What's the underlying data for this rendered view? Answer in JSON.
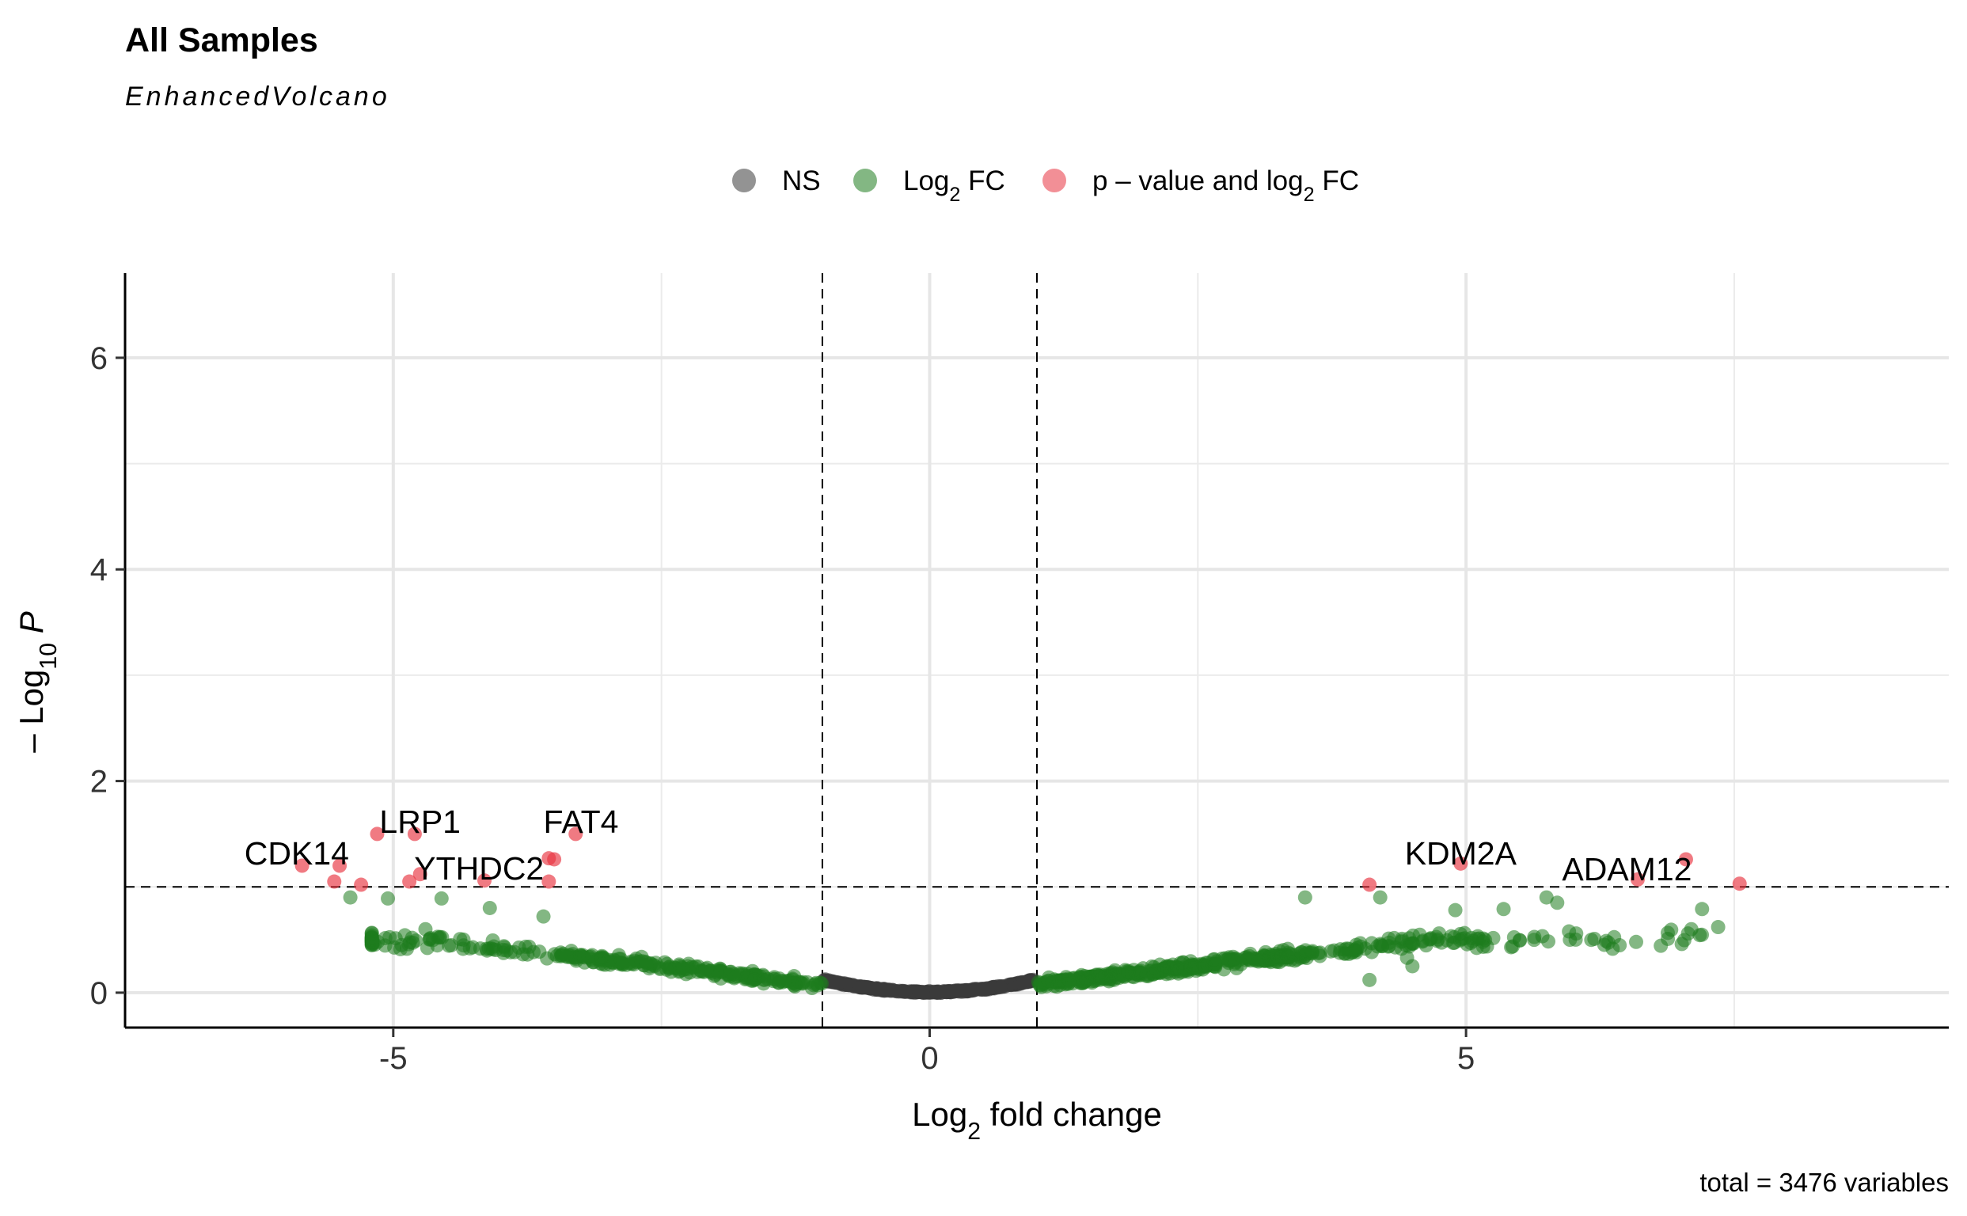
{
  "chart_data": {
    "type": "scatter",
    "title": "All Samples",
    "subtitle": "EnhancedVolcano",
    "xlabel": {
      "prefix": "Log",
      "sub": "2",
      "suffix": " fold change"
    },
    "ylabel": {
      "prefix": "– Log",
      "sub": "10",
      "suffix": " P"
    },
    "xlim": [
      -7.5,
      9.5
    ],
    "ylim": [
      -0.33,
      6.8
    ],
    "x_ticks": [
      -5,
      0,
      5
    ],
    "x_tick_labels": [
      "-5",
      "0",
      "5"
    ],
    "y_ticks": [
      0,
      2,
      4,
      6
    ],
    "y_tick_labels": [
      "0",
      "2",
      "4",
      "6"
    ],
    "grid": true,
    "fc_cutoff": 1,
    "p_cutoff_log": 1,
    "legend": {
      "position": "top",
      "items": [
        {
          "key": "ns",
          "label": "NS",
          "sub": "",
          "suffix": "",
          "color": "#3a3a3a"
        },
        {
          "key": "fc",
          "label": "Log",
          "sub": "2",
          "suffix": " FC",
          "color": "#1e7b1e"
        },
        {
          "key": "both",
          "label": "p – value and log",
          "sub": "2",
          "suffix": " FC",
          "color": "#e8333f"
        }
      ]
    },
    "caption": "total = 3476 variables",
    "highlight_points": [
      {
        "x": -5.85,
        "y": 1.2
      },
      {
        "x": -5.55,
        "y": 1.05
      },
      {
        "x": -5.5,
        "y": 1.2
      },
      {
        "x": -5.3,
        "y": 1.02
      },
      {
        "x": -5.15,
        "y": 1.5
      },
      {
        "x": -4.8,
        "y": 1.5
      },
      {
        "x": -4.85,
        "y": 1.05
      },
      {
        "x": -4.75,
        "y": 1.12
      },
      {
        "x": -4.15,
        "y": 1.06
      },
      {
        "x": -3.55,
        "y": 1.27
      },
      {
        "x": -3.5,
        "y": 1.26
      },
      {
        "x": -3.55,
        "y": 1.05
      },
      {
        "x": -3.3,
        "y": 1.5
      },
      {
        "x": 4.1,
        "y": 1.02
      },
      {
        "x": 4.95,
        "y": 1.22
      },
      {
        "x": 6.6,
        "y": 1.07
      },
      {
        "x": 7.05,
        "y": 1.26
      },
      {
        "x": 7.55,
        "y": 1.03
      }
    ],
    "gene_labels": [
      {
        "text": "CDK14",
        "x": -5.9,
        "y": 1.18
      },
      {
        "text": "LRP1",
        "x": -4.75,
        "y": 1.48
      },
      {
        "text": "YTHDC2",
        "x": -4.2,
        "y": 1.04
      },
      {
        "text": "FAT4",
        "x": -3.25,
        "y": 1.48
      },
      {
        "text": "KDM2A",
        "x": 4.95,
        "y": 1.18
      },
      {
        "text": "ADAM12",
        "x": 6.5,
        "y": 1.03
      }
    ]
  }
}
